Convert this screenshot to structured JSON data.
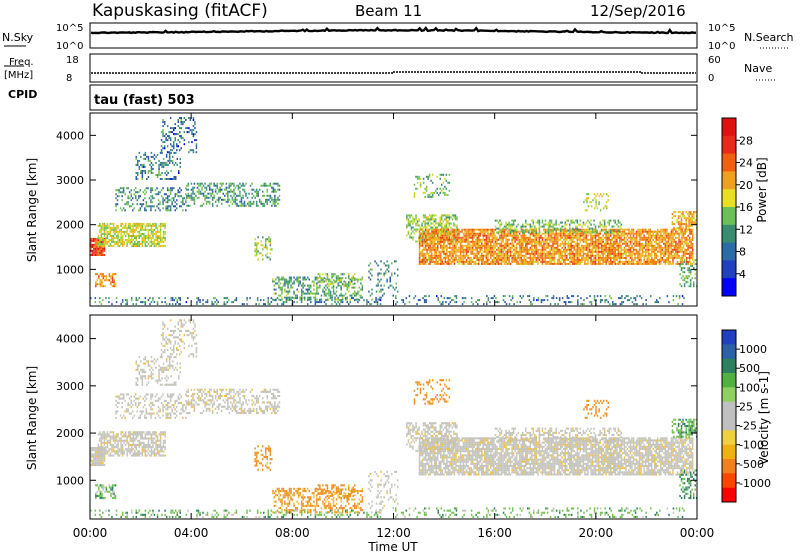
{
  "header": {
    "station": "Kapuskasing (fitACF)",
    "beam": "Beam 11",
    "date": "12/Sep/2016"
  },
  "strips": {
    "nsky_label": "N.Sky",
    "nsky_ticks": [
      "10^5",
      "10^0"
    ],
    "nsearch_label": "N.Search",
    "nsearch_ticks": [
      "10^5",
      "10^0"
    ],
    "freq_label": "Freq.",
    "freq_unit": "[MHz]",
    "freq_ticks": [
      "18",
      "8"
    ],
    "nave_label": "Nave",
    "nave_ticks": [
      "60",
      "0"
    ],
    "cpid_label": "CPID",
    "cpid_value": "tau (fast) 503"
  },
  "chart_data": [
    {
      "type": "heatmap",
      "name": "power",
      "ylabel": "Slant Range [km]",
      "ylim": [
        180,
        4500
      ],
      "yticks": [
        "4000",
        "3000",
        "2000",
        "1000"
      ],
      "colorbar_label": "Power [dB]",
      "colorbar_ticks": [
        "28",
        "24",
        "20",
        "16",
        "12",
        "8",
        "4"
      ],
      "colorbar_colors": [
        "#0000ff",
        "#2040c0",
        "#2c6aa8",
        "#3a8c70",
        "#6cc05a",
        "#e8e020",
        "#f0a020",
        "#f06010",
        "#e82818",
        "#e01010"
      ]
    },
    {
      "type": "heatmap",
      "name": "velocity",
      "ylabel": "Slant Range [km]",
      "ylim": [
        180,
        4500
      ],
      "yticks": [
        "4000",
        "3000",
        "2000",
        "1000"
      ],
      "colorbar_label": "Velocity [m s-1]",
      "colorbar_ticks": [
        "1000",
        "500",
        "100",
        "25",
        "-25",
        "-100",
        "-500",
        "-1000"
      ],
      "colorbar_colors": [
        "#ff0000",
        "#ff4400",
        "#f08020",
        "#f0b010",
        "#f0d040",
        "#c0c0c0",
        "#c0c0c0",
        "#90d060",
        "#50b040",
        "#2c8060",
        "#2c60a8",
        "#2040c0"
      ]
    }
  ],
  "xaxis": {
    "label": "Time UT",
    "ticks": [
      "00:00",
      "04:00",
      "08:00",
      "12:00",
      "16:00",
      "20:00",
      "00:00"
    ]
  }
}
